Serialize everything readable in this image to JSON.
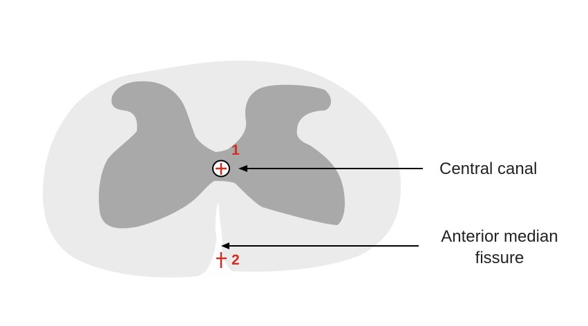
{
  "colors": {
    "white_matter": "#ebebeb",
    "grey_matter": "#a9a9a9",
    "arrow": "#000000",
    "marker": "#d62b20",
    "label_text": "#222222"
  },
  "labels": {
    "central_canal": "Central canal",
    "anterior_median_fissure": "Anterior median fissure"
  },
  "markers": {
    "marker_1": "1",
    "marker_2": "2"
  }
}
